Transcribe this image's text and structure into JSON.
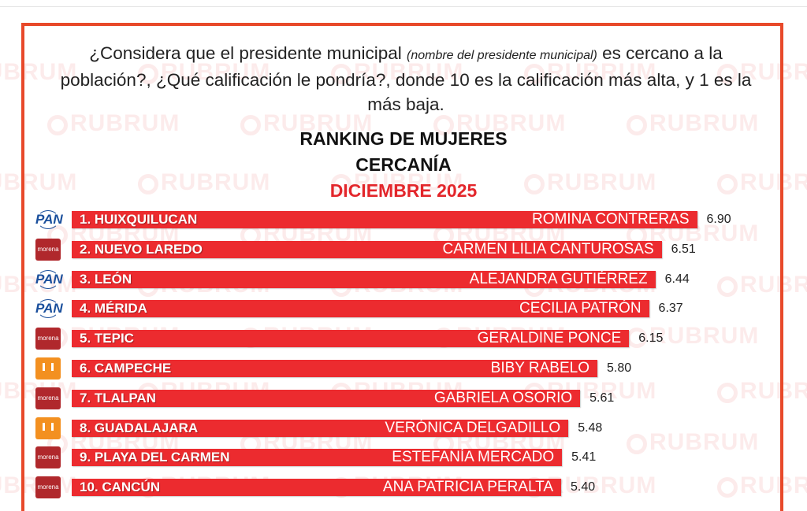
{
  "watermark": "RUBRUM",
  "question": {
    "part1": "¿Considera que el presidente municipal ",
    "italic": "(nombre del presidente municipal)",
    "part2": " es cercano a la población?, ¿Qué calificación le pondría?, donde 10 es la calificación más alta, y 1 es la más baja."
  },
  "chart_data": {
    "type": "bar",
    "orientation": "horizontal",
    "title": "RANKING DE MUJERES",
    "subtitle": "CERCANÍA",
    "period": "DICIEMBRE 2025",
    "bar_color": "#ec2b2f",
    "xlim": [
      0,
      10
    ],
    "rows": [
      {
        "rank_city": "1. HUIXQUILUCAN",
        "name": "ROMINA CONTRERAS",
        "value": 6.9,
        "value_label": "6.90",
        "party": "PAN"
      },
      {
        "rank_city": "2. NUEVO LAREDO",
        "name": "CARMEN LILIA CANTUROSAS",
        "value": 6.51,
        "value_label": "6.51",
        "party": "morena"
      },
      {
        "rank_city": "3. LEÓN",
        "name": "ALEJANDRA GUTIÉRREZ",
        "value": 6.44,
        "value_label": "6.44",
        "party": "PAN"
      },
      {
        "rank_city": "4. MÉRIDA",
        "name": "CECILIA PATRÓN",
        "value": 6.37,
        "value_label": "6.37",
        "party": "PAN"
      },
      {
        "rank_city": "5. TEPIC",
        "name": "GERALDINE PONCE",
        "value": 6.15,
        "value_label": "6.15",
        "party": "morena"
      },
      {
        "rank_city": "6. CAMPECHE",
        "name": "BIBY RABELO",
        "value": 5.8,
        "value_label": "5.80",
        "party": "MC"
      },
      {
        "rank_city": "7. TLALPAN",
        "name": "GABRIELA OSORIO",
        "value": 5.61,
        "value_label": "5.61",
        "party": "morena"
      },
      {
        "rank_city": "8. GUADALAJARA",
        "name": "VERÓNICA DELGADILLO",
        "value": 5.48,
        "value_label": "5.48",
        "party": "MC"
      },
      {
        "rank_city": "9. PLAYA DEL CARMEN",
        "name": "ESTEFANÍA MERCADO",
        "value": 5.41,
        "value_label": "5.41",
        "party": "morena"
      },
      {
        "rank_city": "10. CANCÚN",
        "name": "ANA PATRICIA PERALTA",
        "value": 5.4,
        "value_label": "5.40",
        "party": "morena"
      }
    ]
  }
}
